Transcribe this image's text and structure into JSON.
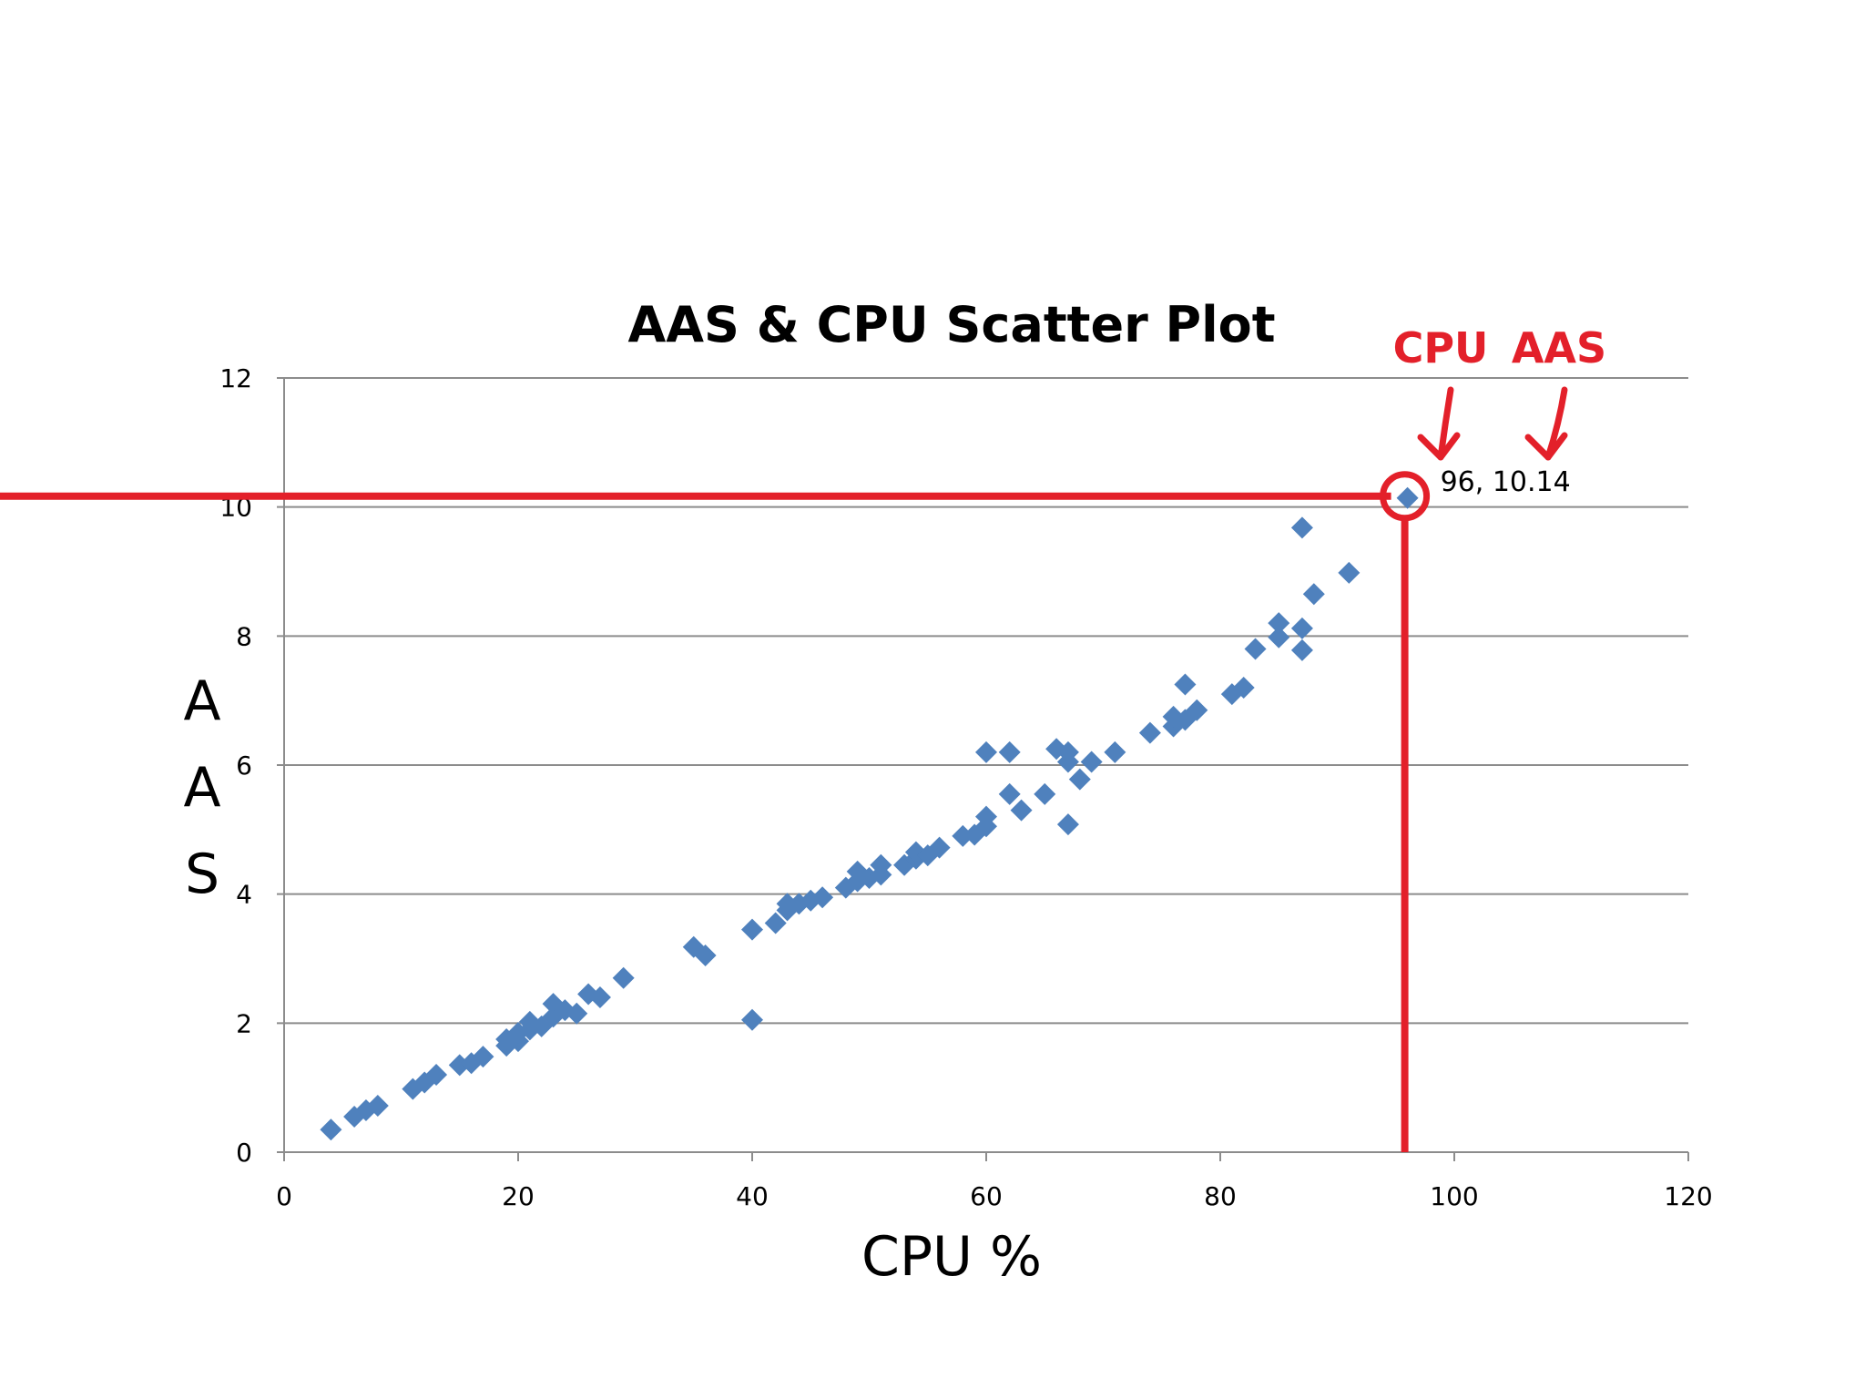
{
  "colors": {
    "marker": "#4f81bd",
    "gridline": "#8c8c8c",
    "annotation": "#e3202a",
    "text": "#000000"
  },
  "chart_data": {
    "type": "scatter",
    "title": "AAS & CPU Scatter Plot",
    "xlabel": "CPU %",
    "ylabel": "AAS",
    "xlim": [
      0,
      120
    ],
    "ylim": [
      0,
      12
    ],
    "xticks": [
      0,
      20,
      40,
      60,
      80,
      100,
      120
    ],
    "yticks": [
      0,
      2,
      4,
      6,
      8,
      10,
      12
    ],
    "grid": "horizontal",
    "marker": "diamond",
    "legend": "none",
    "points": [
      [
        4,
        0.35
      ],
      [
        6,
        0.55
      ],
      [
        7,
        0.65
      ],
      [
        8,
        0.72
      ],
      [
        11,
        0.98
      ],
      [
        12,
        1.08
      ],
      [
        13,
        1.2
      ],
      [
        15,
        1.35
      ],
      [
        16,
        1.38
      ],
      [
        17,
        1.48
      ],
      [
        19,
        1.65
      ],
      [
        19,
        1.75
      ],
      [
        20,
        1.72
      ],
      [
        20,
        1.85
      ],
      [
        21,
        1.9
      ],
      [
        21,
        2.02
      ],
      [
        22,
        1.95
      ],
      [
        23,
        2.1
      ],
      [
        23,
        2.3
      ],
      [
        24,
        2.2
      ],
      [
        25,
        2.15
      ],
      [
        26,
        2.45
      ],
      [
        27,
        2.4
      ],
      [
        29,
        2.7
      ],
      [
        35,
        3.18
      ],
      [
        36,
        3.05
      ],
      [
        40,
        3.45
      ],
      [
        40,
        2.05
      ],
      [
        42,
        3.55
      ],
      [
        43,
        3.75
      ],
      [
        43,
        3.85
      ],
      [
        44,
        3.85
      ],
      [
        45,
        3.9
      ],
      [
        46,
        3.95
      ],
      [
        48,
        4.1
      ],
      [
        49,
        4.2
      ],
      [
        49,
        4.35
      ],
      [
        50,
        4.25
      ],
      [
        51,
        4.3
      ],
      [
        51,
        4.45
      ],
      [
        53,
        4.45
      ],
      [
        54,
        4.55
      ],
      [
        54,
        4.65
      ],
      [
        55,
        4.6
      ],
      [
        56,
        4.72
      ],
      [
        58,
        4.9
      ],
      [
        59,
        4.92
      ],
      [
        60,
        5.05
      ],
      [
        60,
        5.2
      ],
      [
        60,
        6.2
      ],
      [
        62,
        6.2
      ],
      [
        62,
        5.55
      ],
      [
        63,
        5.3
      ],
      [
        65,
        5.55
      ],
      [
        66,
        6.25
      ],
      [
        67,
        6.2
      ],
      [
        67,
        5.08
      ],
      [
        67,
        6.05
      ],
      [
        68,
        5.78
      ],
      [
        69,
        6.05
      ],
      [
        71,
        6.2
      ],
      [
        74,
        6.5
      ],
      [
        76,
        6.6
      ],
      [
        76,
        6.75
      ],
      [
        77,
        6.7
      ],
      [
        77,
        7.25
      ],
      [
        78,
        6.85
      ],
      [
        81,
        7.1
      ],
      [
        82,
        7.2
      ],
      [
        83,
        7.8
      ],
      [
        85,
        7.98
      ],
      [
        85,
        8.2
      ],
      [
        87,
        7.78
      ],
      [
        87,
        8.12
      ],
      [
        87,
        9.68
      ],
      [
        88,
        8.65
      ],
      [
        91,
        8.98
      ],
      [
        96,
        10.14
      ]
    ],
    "annotations": {
      "highlight_point": [
        96,
        10.14
      ],
      "highlight_label": "96, 10.14",
      "callout_x_label": "CPU",
      "callout_y_label": "AAS"
    }
  }
}
